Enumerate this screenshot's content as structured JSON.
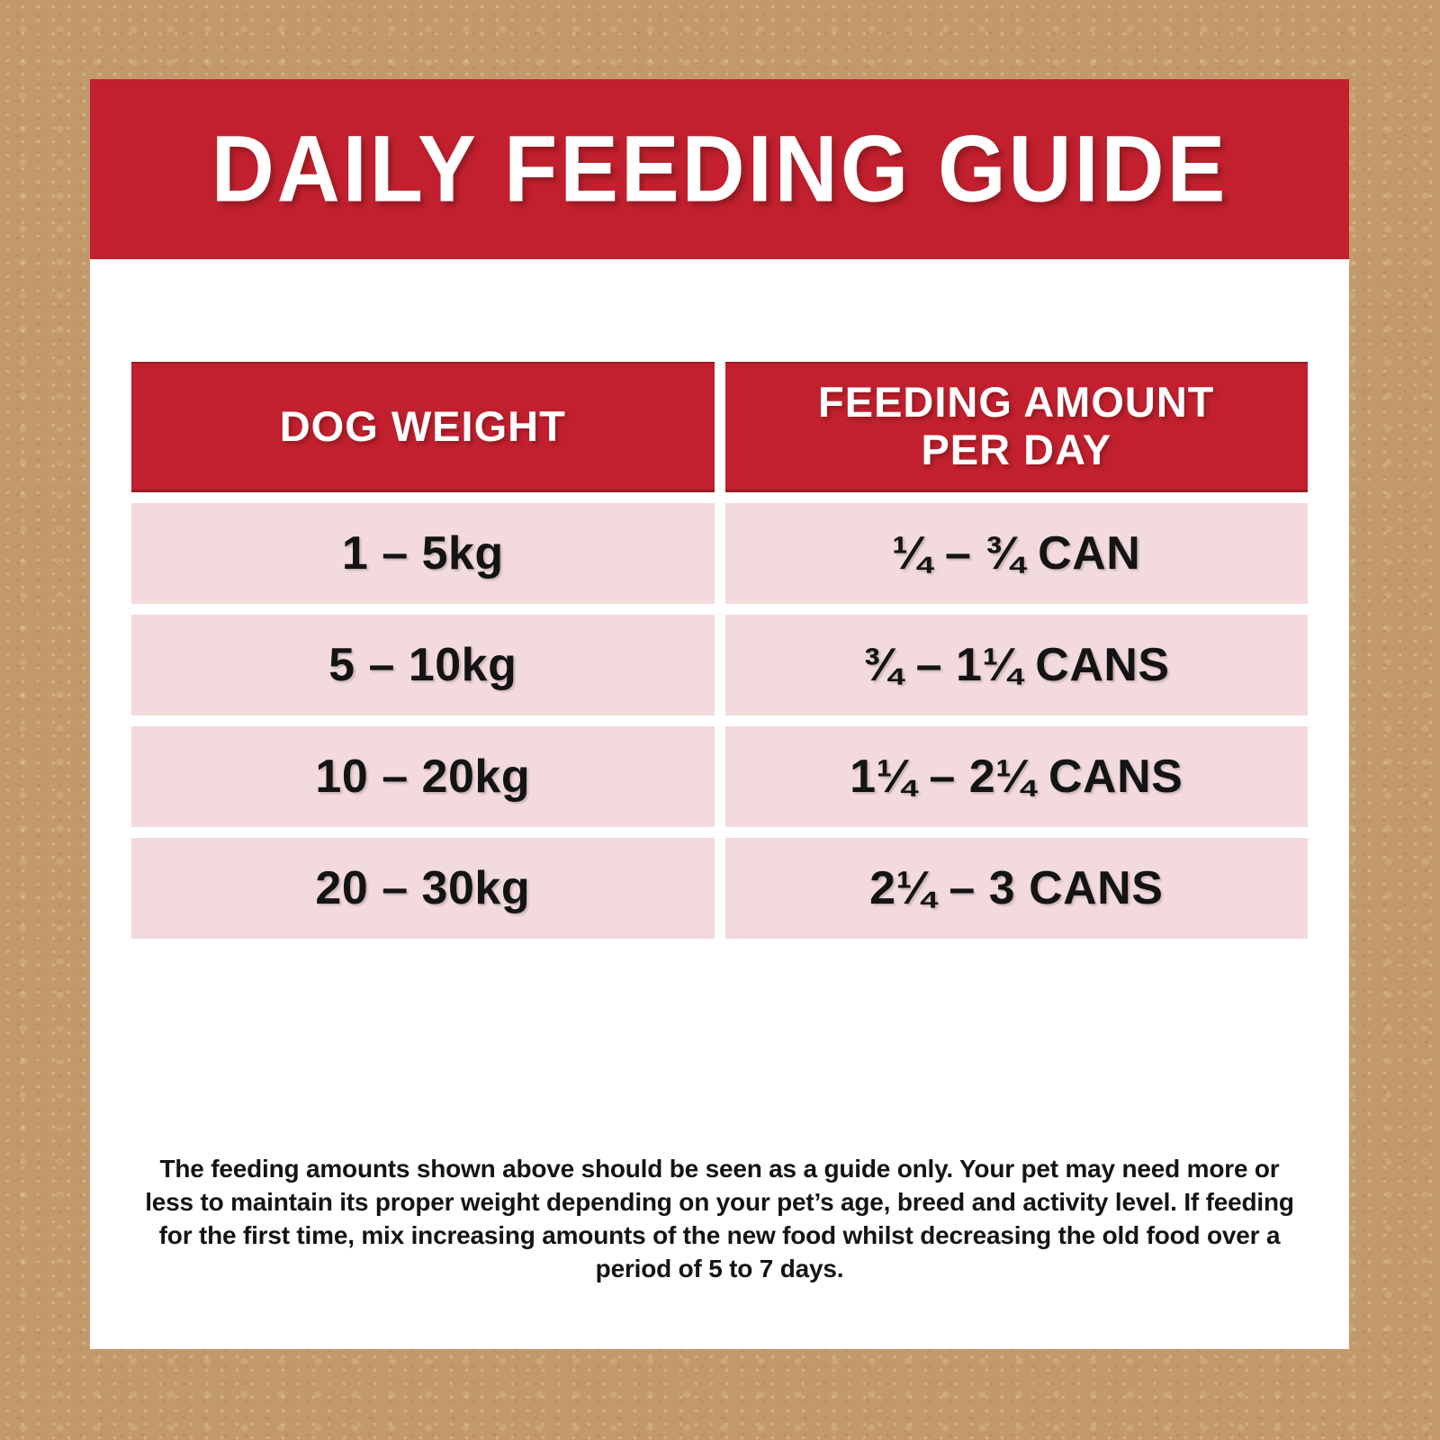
{
  "header": {
    "title": "DAILY FEEDING GUIDE"
  },
  "table": {
    "columns": [
      {
        "label": "DOG WEIGHT"
      },
      {
        "label": "FEEDING AMOUNT\nPER DAY"
      }
    ],
    "rows": [
      {
        "weight": "1 – 5kg",
        "amount": "¼ – ¾ CAN"
      },
      {
        "weight": "5 – 10kg",
        "amount": "¾ – 1¼ CANS"
      },
      {
        "weight": "10 – 20kg",
        "amount": "1¼ – 2¼ CANS"
      },
      {
        "weight": "20 – 30kg",
        "amount": "2¼ – 3 CANS"
      }
    ]
  },
  "footer": {
    "note": "The feeding amounts shown above should be seen as a guide only. Your pet may need more or less to maintain its proper weight depending on your pet’s age, breed and activity level. If feeding for the first time, mix increasing amounts of the new food whilst decreasing the old food over a period of 5 to 7 days."
  },
  "colors": {
    "banner_red": "#C2202E",
    "banner_red_edge": "#9B1B26",
    "row_pink": "#F2DADD",
    "background_tan": "#C2996B",
    "card_white": "#FFFFFF",
    "text_dark": "#141414"
  }
}
